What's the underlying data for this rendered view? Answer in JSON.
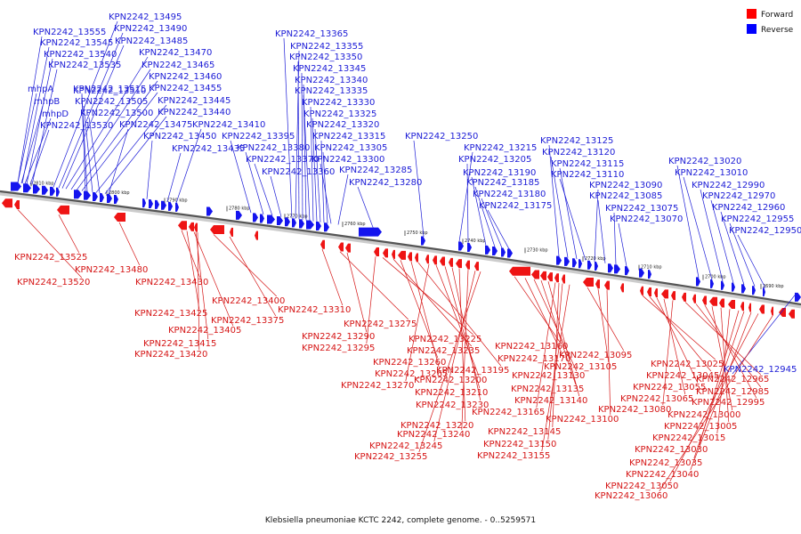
{
  "legend": {
    "items": [
      {
        "label": "Forward",
        "color": "#ff0000"
      },
      {
        "label": "Reverse",
        "color": "#0000ff"
      }
    ]
  },
  "caption": "Klebsiella pneumoniae KCTC 2242, complete genome. - 0..5259571",
  "ticks": [
    "2810 kbp",
    "2800 kbp",
    "2790 kbp",
    "2780 kbp",
    "2770 kbp",
    "2760 kbp",
    "2750 kbp",
    "2740 kbp",
    "2730 kbp",
    "2720 kbp",
    "2710 kbp",
    "2700 kbp",
    "2690 kbp"
  ],
  "reverse_labels": [
    "KPN2242_13495",
    "KPN2242_13555",
    "KPN2242_13490",
    "KPN2242_13545",
    "KPN2242_13485",
    "KPN2242_13540",
    "KPN2242_13470",
    "KPN2242_13535",
    "KPN2242_13465",
    "KPN2242_13460",
    "mhpA",
    "KPN2242_13515",
    "KPN2242_13455",
    "KPN2242_13510",
    "mhpB",
    "KPN2242_13505",
    "KPN2242_13445",
    "mhpD",
    "KPN2242_13500",
    "KPN2242_13440",
    "KPN2242_13530",
    "KPN2242_13475",
    "KPN2242_13410",
    "KPN2242_13450",
    "KPN2242_13435",
    "KPN2242_13365",
    "KPN2242_13355",
    "KPN2242_13350",
    "KPN2242_13345",
    "KPN2242_13340",
    "KPN2242_13335",
    "KPN2242_13330",
    "KPN2242_13325",
    "KPN2242_13320",
    "KPN2242_13395",
    "KPN2242_13315",
    "KPN2242_13380",
    "KPN2242_13305",
    "KPN2242_13370",
    "KPN2242_13300",
    "KPN2242_13360",
    "KPN2242_13285",
    "KPN2242_13280",
    "KPN2242_13250",
    "KPN2242_13215",
    "KPN2242_13205",
    "KPN2242_13190",
    "KPN2242_13185",
    "KPN2242_13180",
    "KPN2242_13175",
    "KPN2242_13125",
    "KPN2242_13120",
    "KPN2242_13115",
    "KPN2242_13110",
    "KPN2242_13090",
    "KPN2242_13085",
    "KPN2242_13075",
    "KPN2242_13070",
    "KPN2242_13020",
    "KPN2242_13010",
    "KPN2242_12990",
    "KPN2242_12970",
    "KPN2242_12960",
    "KPN2242_12955",
    "KPN2242_12950",
    "KPN2242_12945"
  ],
  "forward_labels": [
    "KPN2242_13525",
    "KPN2242_13480",
    "KPN2242_13520",
    "KPN2242_13430",
    "KPN2242_13400",
    "KPN2242_13425",
    "KPN2242_13375",
    "KPN2242_13405",
    "KPN2242_13415",
    "KPN2242_13420",
    "KPN2242_13310",
    "KPN2242_13275",
    "KPN2242_13290",
    "KPN2242_13295",
    "KPN2242_13225",
    "KPN2242_13235",
    "KPN2242_13260",
    "KPN2242_13265",
    "KPN2242_13195",
    "KPN2242_13270",
    "KPN2242_13200",
    "KPN2242_13210",
    "KPN2242_13230",
    "KPN2242_13220",
    "KPN2242_13240",
    "KPN2242_13245",
    "KPN2242_13255",
    "KPN2242_13160",
    "KPN2242_13170",
    "KPN2242_13130",
    "KPN2242_13135",
    "KPN2242_13140",
    "KPN2242_13165",
    "KPN2242_13145",
    "KPN2242_13150",
    "KPN2242_13155",
    "KPN2242_13095",
    "KPN2242_13105",
    "KPN2242_13100",
    "KPN2242_13025",
    "KPN2242_13045",
    "KPN2242_13055",
    "KPN2242_13065",
    "KPN2242_13080",
    "KPN2242_12965",
    "KPN2242_12985",
    "KPN2242_12995",
    "KPN2242_13000",
    "KPN2242_13005",
    "KPN2242_13015",
    "KPN2242_13030",
    "KPN2242_13035",
    "KPN2242_13040",
    "KPN2242_13050",
    "KPN2242_13060"
  ]
}
